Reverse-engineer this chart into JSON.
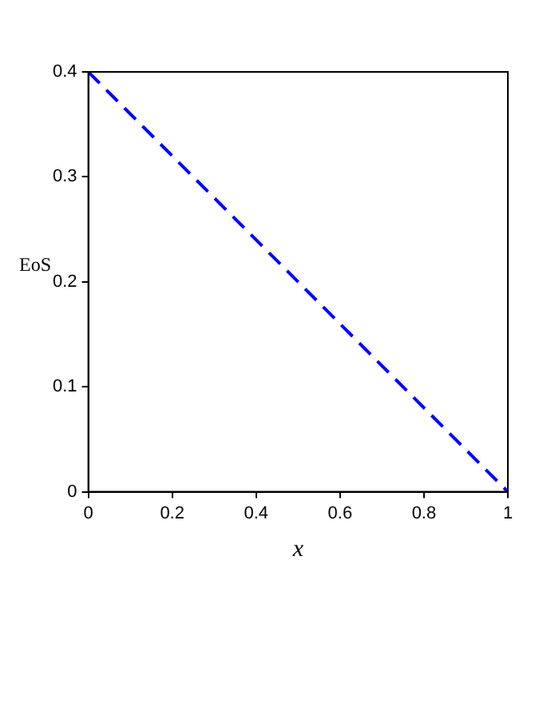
{
  "chart_data": {
    "type": "line",
    "xlabel": "x",
    "ylabel": "EoS",
    "x": [
      0,
      1
    ],
    "series": [
      {
        "color": "#0000ff",
        "values": [
          0.4,
          0
        ]
      }
    ],
    "xlim": [
      0,
      1
    ],
    "xticks": [
      0,
      0.2,
      0.4,
      0.6,
      0.8,
      1
    ],
    "ylim": [
      0,
      0.4
    ],
    "yticks": [
      0,
      0.1,
      0.2,
      0.3,
      0.4
    ],
    "grid": false,
    "legend": false,
    "marker": "none",
    "line_style": "dashed"
  }
}
